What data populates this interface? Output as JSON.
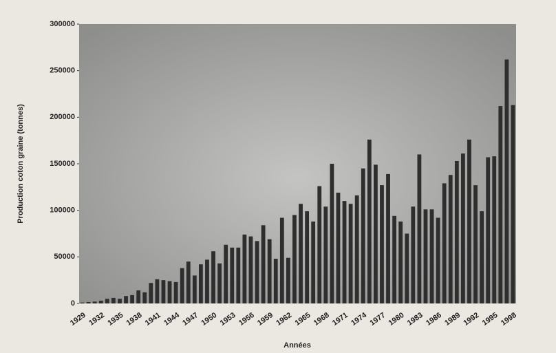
{
  "chart_data": {
    "type": "bar",
    "x_label": "Années",
    "y_label": "Production coton graine (tonnes)",
    "categories": [
      "1929",
      null,
      null,
      "1932",
      null,
      null,
      "1935",
      null,
      null,
      "1938",
      null,
      null,
      "1941",
      null,
      null,
      "1944",
      null,
      null,
      "1947",
      null,
      null,
      "1950",
      null,
      null,
      "1953",
      null,
      null,
      "1956",
      null,
      null,
      "1959",
      null,
      null,
      "1962",
      null,
      null,
      "1965",
      null,
      null,
      "1968",
      null,
      null,
      "1971",
      null,
      null,
      "1974",
      null,
      null,
      "1977",
      null,
      null,
      "1980",
      null,
      null,
      "1983",
      null,
      null,
      "1986",
      null,
      null,
      "1989",
      null,
      null,
      "1992",
      null,
      null,
      "1995",
      null,
      null,
      "1998"
    ],
    "values": [
      1000,
      1500,
      2000,
      3000,
      5000,
      6000,
      5000,
      8000,
      9000,
      14000,
      12000,
      22000,
      26000,
      25000,
      24000,
      23000,
      38000,
      45000,
      30000,
      42000,
      47000,
      56000,
      43000,
      63000,
      60000,
      60000,
      74000,
      72000,
      67000,
      84000,
      69000,
      48000,
      92000,
      49000,
      95000,
      107000,
      99000,
      88000,
      126000,
      104000,
      150000,
      119000,
      110000,
      107000,
      116000,
      145000,
      176000,
      149000,
      127000,
      139000,
      94000,
      88000,
      75000,
      104000,
      160000,
      101000,
      101000,
      92000,
      129000,
      138000,
      153000,
      161000,
      176000,
      127000,
      99000,
      157000,
      158000,
      212000,
      262000,
      213000
    ],
    "color": "#2e2e2e",
    "ylim": [
      0,
      300000
    ],
    "yticks": [
      0,
      50000,
      100000,
      150000,
      200000,
      250000,
      300000
    ]
  }
}
